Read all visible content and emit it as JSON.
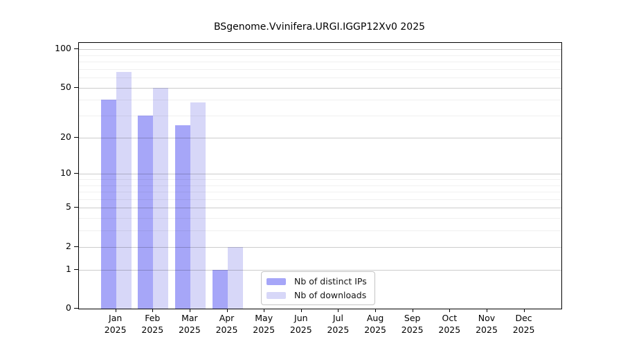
{
  "chart_data": {
    "type": "bar",
    "title": "BSgenome.Vvinifera.URGI.IGGP12Xv0 2025",
    "categories": [
      "Jan",
      "Feb",
      "Mar",
      "Apr",
      "May",
      "Jun",
      "Jul",
      "Aug",
      "Sep",
      "Oct",
      "Nov",
      "Dec"
    ],
    "year": "2025",
    "series": [
      {
        "name": "Nb of distinct IPs",
        "color": "#a6a6f8",
        "values": [
          40,
          30,
          25,
          1,
          0,
          0,
          0,
          0,
          0,
          0,
          0,
          0
        ]
      },
      {
        "name": "Nb of downloads",
        "color": "#d7d7f8",
        "values": [
          66,
          50,
          38,
          2,
          0,
          0,
          0,
          0,
          0,
          0,
          0,
          0
        ]
      }
    ],
    "xlabel": "",
    "ylabel": "",
    "ylim": [
      0,
      100
    ],
    "y_scale": "log10(1+x)",
    "y_major_ticks": [
      0,
      1,
      2,
      5,
      10,
      20,
      50,
      100
    ],
    "y_minor_gridlines": [
      3,
      4,
      6,
      7,
      8,
      9,
      30,
      40,
      60,
      70,
      80,
      90
    ],
    "grid": true,
    "legend_position": "bottom-center-inside"
  }
}
